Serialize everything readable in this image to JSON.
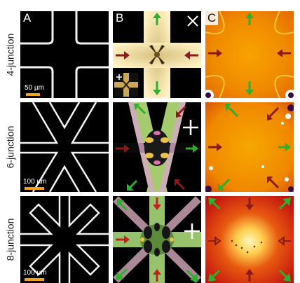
{
  "columns": {
    "a": "A",
    "b": "B",
    "c": "C"
  },
  "rows": [
    {
      "label": "4-junction",
      "scale": "50 µm"
    },
    {
      "label": "6-junction",
      "scale": "100 µm"
    },
    {
      "label": "8-junction",
      "scale": "100 µm"
    }
  ],
  "colors": {
    "arrow_green": "#2fae2f",
    "arrow_red": "#8b1a1a",
    "scalebar": "#f3a21a",
    "heat_orange": "#f59a00",
    "heat_red": "#d62a10"
  }
}
